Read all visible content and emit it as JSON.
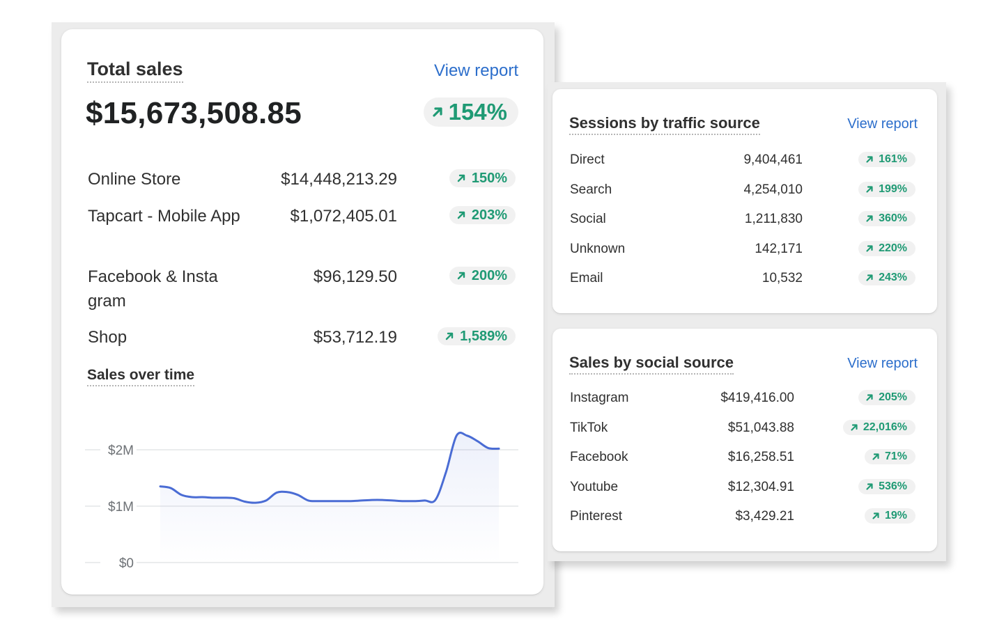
{
  "total_sales": {
    "title": "Total sales",
    "view_report": "View report",
    "value": "$15,673,508.85",
    "change": "154%",
    "channels": [
      {
        "name": "Online Store",
        "value": "$14,448,213.29",
        "change": "150%"
      },
      {
        "name": "Tapcart - Mobile App",
        "value": "$1,072,405.01",
        "change": "203%"
      },
      {
        "name": "Facebook & Insta gram",
        "value": "$96,129.50",
        "change": "200%"
      },
      {
        "name": "Shop",
        "value": "$53,712.19",
        "change": "1,589%"
      }
    ],
    "chart_title": "Sales over time",
    "chart_data": {
      "type": "line",
      "yticks": [
        "$2M",
        "$1M",
        "$0"
      ],
      "ylim": [
        0,
        2000000
      ],
      "series": [
        {
          "values": [
            1350000,
            1320000,
            1200000,
            1160000,
            1160000,
            1150000,
            1150000,
            1140000,
            1080000,
            1060000,
            1100000,
            1240000,
            1250000,
            1200000,
            1100000,
            1090000,
            1090000,
            1090000,
            1090000,
            1100000,
            1110000,
            1110000,
            1100000,
            1090000,
            1090000,
            1100000,
            1110000,
            1600000,
            2250000,
            2250000,
            2150000,
            2030000,
            2020000
          ]
        }
      ],
      "line_color": "#4a6cd4",
      "grid": true
    }
  },
  "sessions": {
    "title": "Sessions by traffic source",
    "view_report": "View report",
    "rows": [
      {
        "name": "Direct",
        "value": "9,404,461",
        "change": "161%"
      },
      {
        "name": "Search",
        "value": "4,254,010",
        "change": "199%"
      },
      {
        "name": "Social",
        "value": "1,211,830",
        "change": "360%"
      },
      {
        "name": "Unknown",
        "value": "142,171",
        "change": "220%"
      },
      {
        "name": "Email",
        "value": "10,532",
        "change": "243%"
      }
    ]
  },
  "social": {
    "title": "Sales by social source",
    "view_report": "View report",
    "rows": [
      {
        "name": "Instagram",
        "value": "$419,416.00",
        "change": "205%"
      },
      {
        "name": "TikTok",
        "value": "$51,043.88",
        "change": "22,016%"
      },
      {
        "name": "Facebook",
        "value": "$16,258.51",
        "change": "71%"
      },
      {
        "name": "Youtube",
        "value": "$12,304.91",
        "change": "536%"
      },
      {
        "name": "Pinterest",
        "value": "$3,429.21",
        "change": "19%"
      }
    ]
  },
  "colors": {
    "positive": "#1f9a74",
    "link": "#2c6ecb",
    "badge_bg": "#f1f1f1"
  },
  "icons": {
    "trend": "arrow-up-right-icon"
  }
}
